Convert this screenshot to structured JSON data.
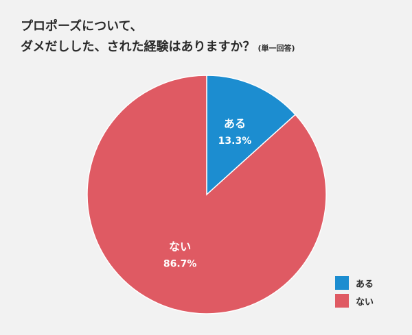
{
  "title": {
    "line1": "プロポーズについて、",
    "line2": "ダメだしした、された経験はありますか？",
    "note": "(単一回答)"
  },
  "colors": {
    "background": "#f2f2f2",
    "aru": "#1c8dd0",
    "nai": "#df5a63",
    "text": "#2b2b2b"
  },
  "chart_data": {
    "type": "pie",
    "title": "プロポーズについて、ダメだしした、された経験はありますか？",
    "subtitle": "(単一回答)",
    "slices": [
      {
        "label": "ある",
        "value": 13.3,
        "display": "13.3%",
        "color": "#1c8dd0"
      },
      {
        "label": "ない",
        "value": 86.7,
        "display": "86.7%",
        "color": "#df5a63"
      }
    ],
    "start_angle_deg": 0,
    "direction": "clockwise",
    "legend_position": "bottom-right"
  }
}
